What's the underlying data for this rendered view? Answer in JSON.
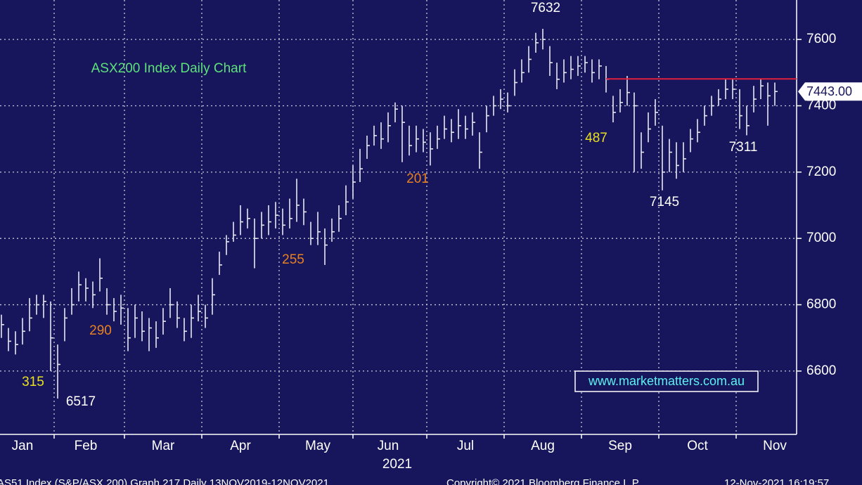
{
  "chart_data": {
    "type": "ohlc",
    "title": "ASX200 Index Daily Chart",
    "categories": [
      null,
      null,
      null,
      "Jan",
      null,
      null,
      null,
      null,
      null,
      null,
      null,
      null,
      "Feb",
      null,
      null,
      null,
      null,
      null,
      null,
      null,
      null,
      null,
      null,
      "Mar",
      null,
      null,
      null,
      null,
      null,
      null,
      null,
      null,
      null,
      null,
      "Apr",
      null,
      null,
      null,
      null,
      null,
      null,
      null,
      null,
      null,
      null,
      "May",
      null,
      null,
      null,
      null,
      null,
      null,
      null,
      null,
      null,
      "Jun",
      null,
      null,
      null,
      null,
      null,
      null,
      null,
      null,
      null,
      null,
      "Jul",
      null,
      null,
      null,
      null,
      null,
      null,
      null,
      null,
      null,
      null,
      "Aug",
      null,
      null,
      null,
      null,
      null,
      null,
      null,
      null,
      null,
      null,
      "Sep",
      null,
      null,
      null,
      null,
      null,
      null,
      null,
      null,
      null,
      null,
      "Oct",
      null,
      null,
      null,
      null,
      null,
      null,
      null,
      null,
      null,
      null,
      "Nov"
    ],
    "high": [
      6770,
      6730,
      6720,
      6760,
      6820,
      6830,
      6830,
      6810,
      6680,
      6790,
      6850,
      6900,
      6880,
      6870,
      6940,
      6850,
      6820,
      6830,
      6790,
      6800,
      6780,
      6760,
      6750,
      6790,
      6850,
      6810,
      6760,
      6800,
      6830,
      6800,
      6880,
      6960,
      7010,
      7050,
      7100,
      7090,
      7060,
      7080,
      7100,
      7110,
      7090,
      7120,
      7180,
      7120,
      7050,
      7080,
      7030,
      7060,
      7100,
      7160,
      7220,
      7270,
      7310,
      7340,
      7350,
      7380,
      7410,
      7400,
      7340,
      7340,
      7330,
      7320,
      7340,
      7370,
      7360,
      7390,
      7370,
      7380,
      7320,
      7400,
      7430,
      7450,
      7440,
      7510,
      7540,
      7580,
      7620,
      7632,
      7580,
      7530,
      7540,
      7550,
      7550,
      7550,
      7540,
      7540,
      7520,
      7430,
      7450,
      7490,
      7440,
      7320,
      7380,
      7420,
      7340,
      7300,
      7290,
      7290,
      7330,
      7360,
      7400,
      7430,
      7450,
      7480,
      7480,
      7450,
      7400,
      7460,
      7480,
      7470,
      7470
    ],
    "low": [
      6700,
      6660,
      6650,
      6680,
      6720,
      6770,
      6760,
      6600,
      6517,
      6690,
      6770,
      6810,
      6810,
      6790,
      6840,
      6770,
      6750,
      6740,
      6660,
      6700,
      6690,
      6660,
      6670,
      6710,
      6760,
      6730,
      6690,
      6700,
      6750,
      6730,
      6770,
      6890,
      6950,
      6990,
      7010,
      7030,
      6910,
      7000,
      7010,
      7030,
      7010,
      7030,
      7050,
      7040,
      6980,
      6980,
      6920,
      6990,
      7020,
      7070,
      7120,
      7170,
      7240,
      7280,
      7270,
      7290,
      7350,
      7230,
      7250,
      7260,
      7260,
      7220,
      7270,
      7300,
      7290,
      7300,
      7300,
      7310,
      7210,
      7320,
      7370,
      7390,
      7380,
      7430,
      7470,
      7500,
      7560,
      7570,
      7490,
      7450,
      7470,
      7480,
      7490,
      7500,
      7470,
      7480,
      7440,
      7350,
      7380,
      7400,
      7200,
      7210,
      7290,
      7340,
      7145,
      7200,
      7180,
      7200,
      7260,
      7290,
      7340,
      7370,
      7400,
      7420,
      7420,
      7330,
      7311,
      7380,
      7420,
      7340,
      7400
    ],
    "close": [
      6740,
      6690,
      6680,
      6720,
      6760,
      6800,
      6810,
      6700,
      6620,
      6760,
      6800,
      6860,
      6850,
      6830,
      6880,
      6800,
      6780,
      6790,
      6700,
      6760,
      6720,
      6730,
      6700,
      6750,
      6800,
      6760,
      6720,
      6760,
      6780,
      6760,
      6830,
      6920,
      6990,
      7010,
      7050,
      7060,
      7000,
      7040,
      7050,
      7070,
      7040,
      7060,
      7100,
      7080,
      7000,
      7020,
      6980,
      7020,
      7060,
      7110,
      7170,
      7210,
      7280,
      7310,
      7300,
      7340,
      7390,
      7350,
      7280,
      7300,
      7290,
      7270,
      7300,
      7330,
      7320,
      7340,
      7330,
      7350,
      7260,
      7370,
      7400,
      7420,
      7400,
      7470,
      7500,
      7540,
      7590,
      7600,
      7530,
      7480,
      7500,
      7510,
      7520,
      7530,
      7500,
      7520,
      7480,
      7380,
      7410,
      7440,
      7400,
      7260,
      7330,
      7380,
      7200,
      7260,
      7220,
      7240,
      7300,
      7320,
      7370,
      7400,
      7420,
      7450,
      7450,
      7370,
      7340,
      7420,
      7460,
      7430,
      7443
    ],
    "last_price": {
      "value": 7443,
      "label": "7443.00"
    },
    "resistance": 7481,
    "ylim": [
      6409,
      7719
    ],
    "yticks": [
      6600,
      6800,
      7000,
      7200,
      7400,
      7600
    ],
    "grid": true,
    "color": "#e8e8f0",
    "resistance_color": "#e0203a",
    "year": "2021",
    "annotations": [
      "7632",
      "487",
      "7311",
      "201",
      "7145",
      "255",
      "290",
      "315",
      "6517"
    ],
    "watermark": "www.marketmatters.com.au",
    "footer": [
      "AS51 Index (S&P/ASX 200) Graph 217  Daily 13NOV2019-12NOV2021",
      "Copyright© 2021 Bloomberg Finance L.P.",
      "12-Nov-2021 16:19:57"
    ]
  }
}
